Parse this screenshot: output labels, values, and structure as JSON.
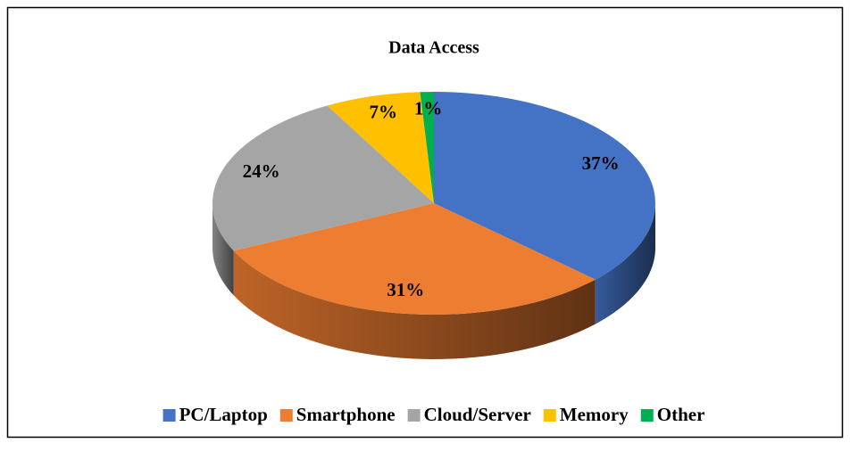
{
  "chart_data": {
    "type": "pie",
    "title": "Data Access",
    "categories": [
      "PC/Laptop",
      "Smartphone",
      "Cloud/Server",
      "Memory",
      "Other"
    ],
    "values": [
      37,
      31,
      24,
      7,
      1
    ],
    "value_labels": [
      "37%",
      "31%",
      "24%",
      "7%",
      "1%"
    ],
    "colors": [
      "#4472c4",
      "#ed7d31",
      "#a5a5a5",
      "#ffc000",
      "#00b050"
    ],
    "legend": "bottom"
  }
}
